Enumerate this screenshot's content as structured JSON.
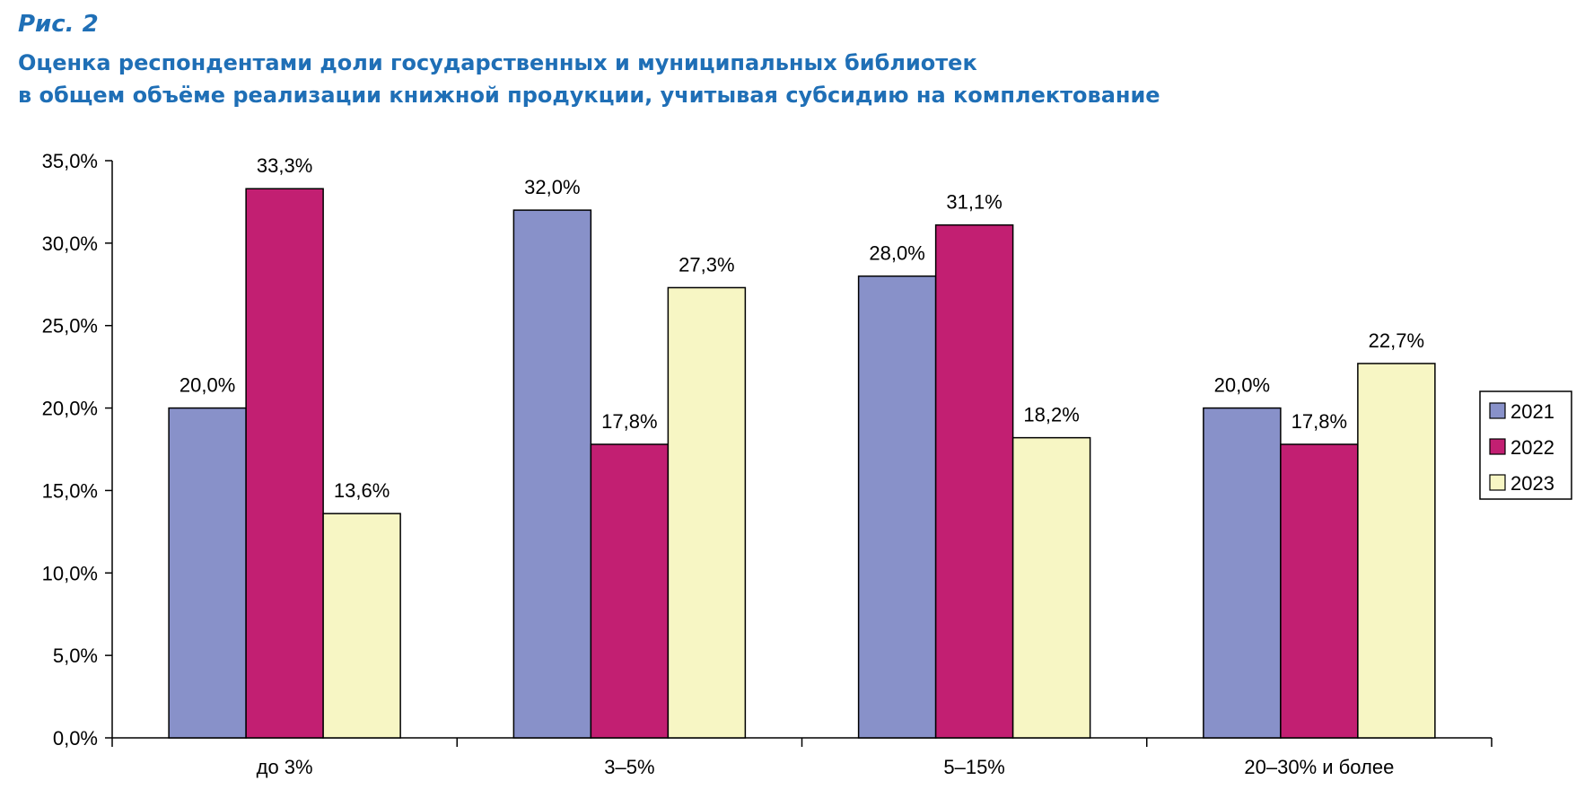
{
  "figure": {
    "label": "Рис. 2",
    "title_lines": [
      "Оценка респондентами доли государственных и муниципальных библиотек",
      "в общем объёме реализации книжной продукции, учитывая субсидию на комплектование"
    ]
  },
  "chart_data": {
    "type": "bar",
    "title": "Оценка респондентами доли государственных и муниципальных библиотек в общем объёме реализации книжной продукции, учитывая субсидию на комплектование",
    "xlabel": "",
    "ylabel": "",
    "categories": [
      "до 3%",
      "3–5%",
      "5–15%",
      "20–30% и более"
    ],
    "series": [
      {
        "name": "2021",
        "color": "#8891c9",
        "values": [
          20.0,
          32.0,
          28.0,
          20.0
        ],
        "labels": [
          "20,0%",
          "32,0%",
          "28,0%",
          "20,0%"
        ]
      },
      {
        "name": "2022",
        "color": "#c21f72",
        "values": [
          33.3,
          17.8,
          31.1,
          17.8
        ],
        "labels": [
          "33,3%",
          "17,8%",
          "31,1%",
          "17,8%"
        ]
      },
      {
        "name": "2023",
        "color": "#f7f6c4",
        "values": [
          13.6,
          27.3,
          18.2,
          22.7
        ],
        "labels": [
          "13,6%",
          "27,3%",
          "18,2%",
          "22,7%"
        ]
      }
    ],
    "ylim": [
      0,
      35
    ],
    "yticks": [
      0,
      5,
      10,
      15,
      20,
      25,
      30,
      35
    ],
    "ytick_labels": [
      "0,0%",
      "5,0%",
      "10,0%",
      "15,0%",
      "20,0%",
      "25,0%",
      "30,0%",
      "35,0%"
    ],
    "grid": false,
    "legend_position": "right"
  }
}
